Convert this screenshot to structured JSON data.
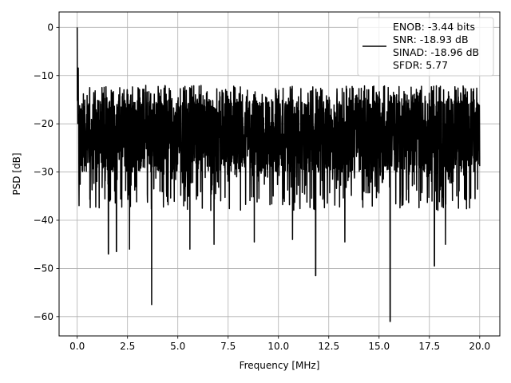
{
  "chart_data": {
    "type": "line",
    "title": "",
    "xlabel": "Frequency [MHz]",
    "ylabel": "PSD [dB]",
    "xlim": [
      -0.9,
      21.0
    ],
    "ylim": [
      -64,
      3.2
    ],
    "xticks": [
      0.0,
      2.5,
      5.0,
      7.5,
      10.0,
      12.5,
      15.0,
      17.5,
      20.0
    ],
    "xtick_labels": [
      "0.0",
      "2.5",
      "5.0",
      "7.5",
      "10.0",
      "12.5",
      "15.0",
      "17.5",
      "20.0"
    ],
    "yticks": [
      0,
      -10,
      -20,
      -30,
      -40,
      -50,
      -60
    ],
    "ytick_labels": [
      "0",
      "−10",
      "−20",
      "−30",
      "−40",
      "−50",
      "−60"
    ],
    "grid": true,
    "legend_position": "top-right",
    "legend_lines": [
      "ENOB: -3.44 bits",
      "SNR: -18.93 dB",
      "SINAD: -18.96 dB",
      "SFDR: 5.77"
    ],
    "series": [
      {
        "color": "#000000",
        "description_of_shape": "dense noise floor spectrum from 0 to 20 MHz",
        "x_range": [
          0,
          20
        ],
        "peak": {
          "x": 0.0,
          "y": 0
        },
        "noise_band": [
          -30,
          -15
        ],
        "typical_upper": -12,
        "notable_dips": [
          {
            "x": 1.55,
            "y": -47
          },
          {
            "x": 1.95,
            "y": -46.5
          },
          {
            "x": 2.6,
            "y": -46
          },
          {
            "x": 3.7,
            "y": -57.5
          },
          {
            "x": 5.6,
            "y": -46
          },
          {
            "x": 6.8,
            "y": -45
          },
          {
            "x": 8.8,
            "y": -44.5
          },
          {
            "x": 10.7,
            "y": -44
          },
          {
            "x": 11.85,
            "y": -51.5
          },
          {
            "x": 13.3,
            "y": -44.5
          },
          {
            "x": 15.55,
            "y": -61
          },
          {
            "x": 17.75,
            "y": -49.5
          },
          {
            "x": 18.3,
            "y": -45
          }
        ]
      }
    ]
  }
}
